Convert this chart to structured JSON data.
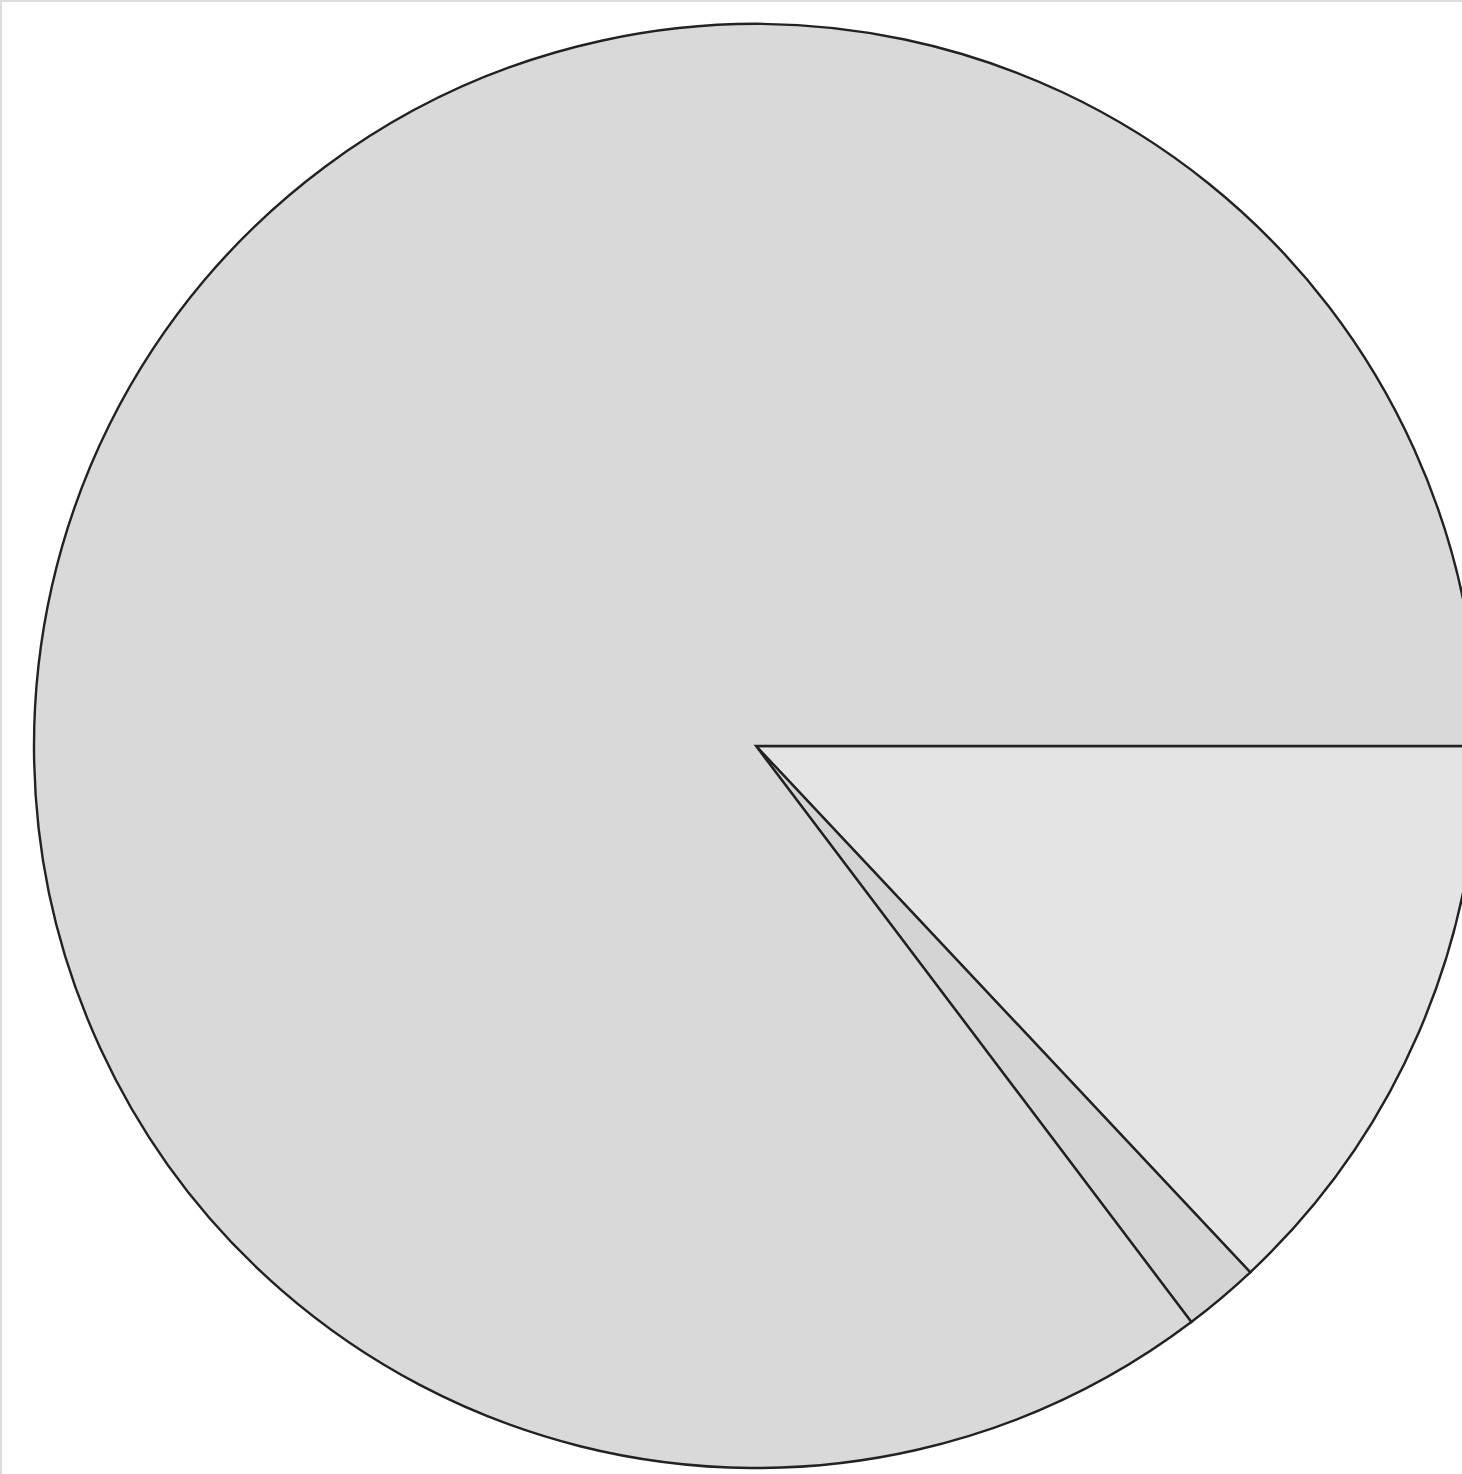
{
  "chart_data": {
    "type": "pie",
    "categories": [
      null,
      null,
      null
    ],
    "values": [
      13.0,
      1.7,
      85.3
    ],
    "colors": [
      "#e4e4e4",
      "#d4d4d4",
      "#d9d9d9"
    ]
  }
}
